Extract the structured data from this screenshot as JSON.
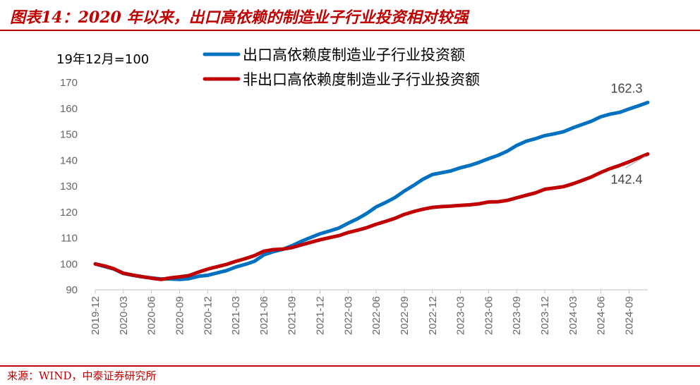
{
  "header": {
    "title": "图表14：2020 年以来，出口高依赖的制造业子行业投资相对较强"
  },
  "footer": {
    "source": "来源：WIND，中泰证券研究所"
  },
  "colors": {
    "accent": "#c00000",
    "series_blue": "#0070c0",
    "series_red": "#c00000"
  },
  "chart_data": {
    "type": "line",
    "unit_label": "19年12月=100",
    "ylim": [
      90,
      170
    ],
    "yticks": [
      90,
      100,
      110,
      120,
      130,
      140,
      150,
      160,
      170
    ],
    "x_tick_labels": [
      "2019-12",
      "2020-03",
      "2020-06",
      "2020-09",
      "2020-12",
      "2021-03",
      "2021-06",
      "2021-09",
      "2021-12",
      "2022-03",
      "2022-06",
      "2022-09",
      "2022-12",
      "2023-03",
      "2023-06",
      "2023-09",
      "2023-12",
      "2024-03",
      "2024-06",
      "2024-09"
    ],
    "x": [
      "2019-12",
      "2020-01",
      "2020-02",
      "2020-03",
      "2020-04",
      "2020-05",
      "2020-06",
      "2020-07",
      "2020-08",
      "2020-09",
      "2020-10",
      "2020-11",
      "2020-12",
      "2021-01",
      "2021-02",
      "2021-03",
      "2021-04",
      "2021-05",
      "2021-06",
      "2021-07",
      "2021-08",
      "2021-09",
      "2021-10",
      "2021-11",
      "2021-12",
      "2022-01",
      "2022-02",
      "2022-03",
      "2022-04",
      "2022-05",
      "2022-06",
      "2022-07",
      "2022-08",
      "2022-09",
      "2022-10",
      "2022-11",
      "2022-12",
      "2023-01",
      "2023-02",
      "2023-03",
      "2023-04",
      "2023-05",
      "2023-06",
      "2023-07",
      "2023-08",
      "2023-09",
      "2023-10",
      "2023-11",
      "2023-12",
      "2024-01",
      "2024-02",
      "2024-03",
      "2024-04",
      "2024-05",
      "2024-06",
      "2024-07",
      "2024-08",
      "2024-09",
      "2024-10",
      "2024-11"
    ],
    "series": [
      {
        "name": "出口高依赖度制造业子行业投资额",
        "color": "#0070c0",
        "values": [
          100.0,
          99.0,
          98.0,
          96.3,
          95.6,
          95.0,
          94.6,
          94.2,
          94.2,
          94.0,
          94.3,
          95.2,
          95.6,
          96.5,
          97.4,
          98.8,
          99.8,
          101.0,
          103.5,
          104.7,
          105.6,
          107.0,
          108.7,
          110.2,
          111.6,
          112.7,
          113.8,
          115.7,
          117.4,
          119.5,
          122.0,
          123.7,
          125.6,
          128.1,
          130.3,
          132.7,
          134.5,
          135.2,
          135.9,
          137.1,
          138.0,
          139.2,
          140.6,
          141.9,
          143.5,
          145.7,
          147.3,
          148.3,
          149.5,
          150.2,
          151.0,
          152.5,
          153.8,
          155.1,
          156.8,
          157.8,
          158.5,
          159.8,
          161.0,
          162.3
        ]
      },
      {
        "name": "非出口高依赖度制造业子行业投资额",
        "color": "#c00000",
        "values": [
          100.0,
          99.2,
          98.1,
          96.4,
          95.7,
          95.1,
          94.5,
          94.0,
          94.6,
          95.0,
          95.5,
          96.8,
          98.0,
          98.9,
          99.8,
          101.0,
          102.0,
          103.2,
          104.9,
          105.5,
          105.7,
          106.3,
          107.3,
          108.3,
          109.3,
          110.1,
          110.9,
          112.1,
          113.0,
          114.0,
          115.3,
          116.4,
          117.6,
          119.1,
          120.2,
          121.1,
          121.8,
          122.1,
          122.3,
          122.6,
          122.8,
          123.2,
          123.9,
          124.0,
          124.5,
          125.5,
          126.5,
          127.4,
          128.8,
          129.3,
          129.8,
          130.9,
          132.2,
          133.6,
          135.3,
          136.8,
          138.0,
          139.4,
          140.9,
          142.4
        ]
      }
    ],
    "end_labels": [
      "162.3",
      "142.4"
    ],
    "grid": false,
    "legend_position": "top"
  }
}
